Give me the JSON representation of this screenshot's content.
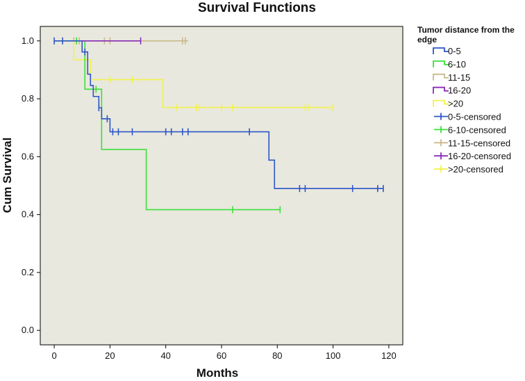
{
  "chart_data": {
    "type": "line",
    "subtype": "kaplan-meier",
    "title": "Survival Functions",
    "xlabel": "Months",
    "ylabel": "Cum Survival",
    "xlim": [
      -5,
      125
    ],
    "ylim": [
      -0.05,
      1.05
    ],
    "xticks": [
      0,
      20,
      40,
      60,
      80,
      100,
      120
    ],
    "yticks": [
      "0.0",
      "0.2",
      "0.4",
      "0.6",
      "0.8",
      "1.0"
    ],
    "grid": false,
    "plot_background": "#E8E8DE",
    "legend_position": "right",
    "legend_title": "Tumor distance from the edge",
    "legend_entries": [
      {
        "label": "0-5",
        "kind": "line",
        "color": "#2D55C8"
      },
      {
        "label": "6-10",
        "kind": "line",
        "color": "#3BE03B"
      },
      {
        "label": "11-15",
        "kind": "line",
        "color": "#C9B98A"
      },
      {
        "label": "16-20",
        "kind": "line",
        "color": "#8A2BB8"
      },
      {
        "label": ">20",
        "kind": "line",
        "color": "#F2F24A"
      },
      {
        "label": "0-5-censored",
        "kind": "censor",
        "color": "#2D55C8"
      },
      {
        "label": "6-10-censored",
        "kind": "censor",
        "color": "#3BE03B"
      },
      {
        "label": "11-15-censored",
        "kind": "censor",
        "color": "#C9B98A"
      },
      {
        "label": "16-20-censored",
        "kind": "censor",
        "color": "#8A2BB8"
      },
      {
        "label": ">20-censored",
        "kind": "censor",
        "color": ">20-censored"
      }
    ],
    "series": [
      {
        "name": "11-15",
        "color": "#C9B98A",
        "steps": [
          [
            0,
            1.0
          ],
          [
            48,
            1.0
          ]
        ],
        "censored": [
          [
            7,
            1.0
          ],
          [
            9,
            1.0
          ],
          [
            18,
            1.0
          ],
          [
            20,
            1.0
          ],
          [
            46,
            1.0
          ],
          [
            47,
            1.0
          ]
        ]
      },
      {
        "name": ">20",
        "color": "#F2F24A",
        "steps": [
          [
            0,
            1.0
          ],
          [
            7,
            0.935
          ],
          [
            13,
            0.866
          ],
          [
            39,
            0.77
          ],
          [
            100,
            0.77
          ]
        ],
        "censored": [
          [
            20,
            0.866
          ],
          [
            28,
            0.866
          ],
          [
            44,
            0.77
          ],
          [
            51,
            0.77
          ],
          [
            52,
            0.77
          ],
          [
            60,
            0.77
          ],
          [
            64,
            0.77
          ],
          [
            90,
            0.77
          ],
          [
            91,
            0.77
          ],
          [
            100,
            0.77
          ]
        ]
      },
      {
        "name": "6-10",
        "color": "#3BE03B",
        "steps": [
          [
            0,
            1.0
          ],
          [
            11,
            0.833
          ],
          [
            16,
            0.833
          ],
          [
            17,
            0.625
          ],
          [
            33,
            0.417
          ],
          [
            81,
            0.417
          ]
        ],
        "censored": [
          [
            8,
            1.0
          ],
          [
            15,
            0.833
          ],
          [
            64,
            0.417
          ],
          [
            81,
            0.417
          ]
        ]
      },
      {
        "name": "0-5",
        "color": "#2D55C8",
        "steps": [
          [
            0,
            1.0
          ],
          [
            10,
            0.962
          ],
          [
            12,
            0.885
          ],
          [
            13,
            0.846
          ],
          [
            14,
            0.808
          ],
          [
            16,
            0.769
          ],
          [
            17,
            0.731
          ],
          [
            20,
            0.686
          ],
          [
            77,
            0.588
          ],
          [
            79,
            0.49
          ],
          [
            118,
            0.49
          ]
        ],
        "censored": [
          [
            0,
            1.0
          ],
          [
            3,
            1.0
          ],
          [
            11,
            0.962
          ],
          [
            16,
            0.769
          ],
          [
            19,
            0.731
          ],
          [
            21,
            0.686
          ],
          [
            23,
            0.686
          ],
          [
            28,
            0.686
          ],
          [
            40,
            0.686
          ],
          [
            42,
            0.686
          ],
          [
            46,
            0.686
          ],
          [
            48,
            0.686
          ],
          [
            70,
            0.686
          ],
          [
            88,
            0.49
          ],
          [
            90,
            0.49
          ],
          [
            107,
            0.49
          ],
          [
            116,
            0.49
          ],
          [
            118,
            0.49
          ]
        ]
      },
      {
        "name": "16-20",
        "color": "#8A2BB8",
        "steps": [
          [
            10,
            1.0
          ],
          [
            31,
            1.0
          ]
        ],
        "censored": [
          [
            31,
            1.0
          ]
        ]
      }
    ]
  }
}
